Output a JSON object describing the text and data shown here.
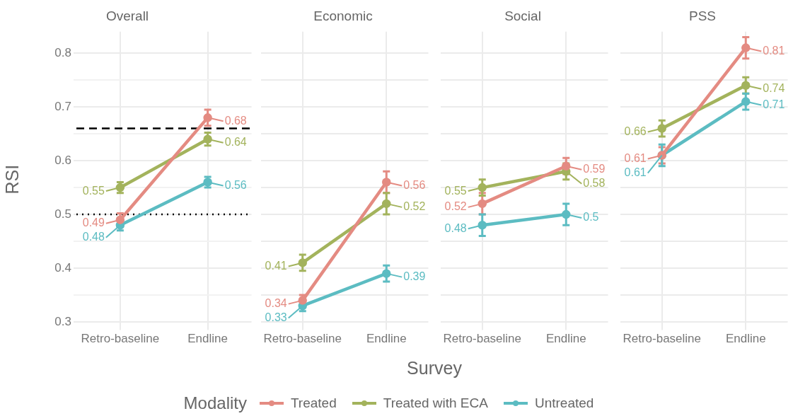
{
  "chart_data": [
    {
      "type": "line",
      "title": "Overall",
      "ylabel": "RSI",
      "annotations": [
        "Survey"
      ],
      "legend_title": "Modality",
      "legend": "bottom",
      "marker": "circle",
      "grid": true,
      "data_labels": true,
      "categories": [
        "Retro-baseline",
        "Endline"
      ],
      "ylim": [
        0.29,
        0.84
      ],
      "yticks": [
        {
          "value": 0.3,
          "label": "0.3"
        },
        {
          "value": 0.35,
          "label": null
        },
        {
          "value": 0.4,
          "label": "0.4"
        },
        {
          "value": 0.45,
          "label": null
        },
        {
          "value": 0.5,
          "label": "0.5"
        },
        {
          "value": 0.55,
          "label": null
        },
        {
          "value": 0.6,
          "label": "0.6"
        },
        {
          "value": 0.65,
          "label": null
        },
        {
          "value": 0.7,
          "label": "0.7"
        },
        {
          "value": 0.75,
          "label": null
        },
        {
          "value": 0.8,
          "label": "0.8"
        }
      ],
      "ref_lines": [
        {
          "axis": "y",
          "value": 0.66,
          "color": "#000000",
          "line_style": "dashed"
        },
        {
          "axis": "y",
          "value": 0.5,
          "color": "#000000",
          "line_style": "dotted"
        }
      ],
      "series": [
        {
          "name": "Treated",
          "color": "#e48b82",
          "values": [
            0.49,
            0.68
          ],
          "errors": [
            0.012,
            0.015
          ]
        },
        {
          "name": "Treated with ECA",
          "color": "#a3b35c",
          "values": [
            0.55,
            0.64
          ],
          "errors": [
            0.01,
            0.012
          ]
        },
        {
          "name": "Untreated",
          "color": "#5cbcc2",
          "values": [
            0.48,
            0.56
          ],
          "errors": [
            0.01,
            0.01
          ]
        }
      ]
    },
    {
      "type": "line",
      "title": "Economic",
      "marker": "circle",
      "grid": true,
      "data_labels": true,
      "tick_labels": "x",
      "categories": [
        "Retro-baseline",
        "Endline"
      ],
      "ylim": [
        0.29,
        0.84
      ],
      "yticks": [
        0.3,
        0.35,
        0.4,
        0.45,
        0.5,
        0.55,
        0.6,
        0.65,
        0.7,
        0.75,
        0.8
      ],
      "series": [
        {
          "color": "#e48b82",
          "values": [
            0.34,
            0.56
          ],
          "errors": [
            0.01,
            0.02
          ]
        },
        {
          "color": "#a3b35c",
          "values": [
            0.41,
            0.52
          ],
          "errors": [
            0.015,
            0.02
          ]
        },
        {
          "color": "#5cbcc2",
          "values": [
            0.33,
            0.39
          ],
          "errors": [
            0.01,
            0.015
          ]
        }
      ]
    },
    {
      "type": "line",
      "title": "Social",
      "marker": "circle",
      "grid": true,
      "data_labels": true,
      "tick_labels": "x",
      "categories": [
        "Retro-baseline",
        "Endline"
      ],
      "ylim": [
        0.29,
        0.84
      ],
      "yticks": [
        0.3,
        0.35,
        0.4,
        0.45,
        0.5,
        0.55,
        0.6,
        0.65,
        0.7,
        0.75,
        0.8
      ],
      "series": [
        {
          "color": "#e48b82",
          "values": [
            0.52,
            0.59
          ],
          "errors": [
            0.02,
            0.015
          ]
        },
        {
          "color": "#a3b35c",
          "values": [
            0.55,
            0.58
          ],
          "errors": [
            0.015,
            0.015
          ]
        },
        {
          "color": "#5cbcc2",
          "values": [
            0.48,
            0.5
          ],
          "errors": [
            0.02,
            0.02
          ]
        }
      ]
    },
    {
      "type": "line",
      "title": "PSS",
      "marker": "circle",
      "grid": true,
      "data_labels": true,
      "tick_labels": "x",
      "categories": [
        "Retro-baseline",
        "Endline"
      ],
      "ylim": [
        0.29,
        0.84
      ],
      "yticks": [
        0.3,
        0.35,
        0.4,
        0.45,
        0.5,
        0.55,
        0.6,
        0.65,
        0.7,
        0.75,
        0.8
      ],
      "series": [
        {
          "color": "#e48b82",
          "values": [
            0.61,
            0.81
          ],
          "errors": [
            0.015,
            0.02
          ]
        },
        {
          "color": "#a3b35c",
          "values": [
            0.66,
            0.74
          ],
          "errors": [
            0.015,
            0.015
          ]
        },
        {
          "color": "#5cbcc2",
          "values": [
            0.61,
            0.71
          ],
          "errors": [
            0.02,
            0.015
          ]
        }
      ]
    }
  ]
}
